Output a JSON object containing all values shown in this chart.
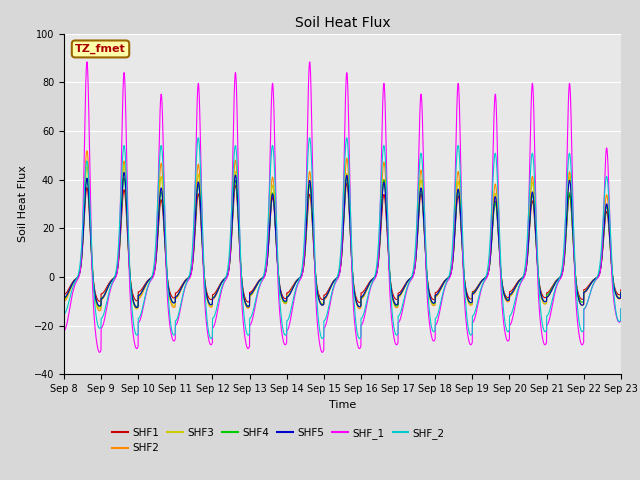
{
  "title": "Soil Heat Flux",
  "xlabel": "Time",
  "ylabel": "Soil Heat Flux",
  "ylim": [
    -40,
    100
  ],
  "x_ticks": [
    "Sep 8",
    "Sep 9",
    "Sep 10",
    "Sep 11",
    "Sep 12",
    "Sep 13",
    "Sep 14",
    "Sep 15",
    "Sep 16",
    "Sep 17",
    "Sep 18",
    "Sep 19",
    "Sep 20",
    "Sep 21",
    "Sep 22",
    "Sep 23"
  ],
  "annotation_text": "TZ_fmet",
  "annotation_bg": "#ffffaa",
  "annotation_border": "#996600",
  "annotation_text_color": "#aa0000",
  "series_colors": {
    "SHF1": "#cc0000",
    "SHF2": "#ff8800",
    "SHF3": "#cccc00",
    "SHF4": "#00cc00",
    "SHF5": "#0000cc",
    "SHF_1": "#ff00ff",
    "SHF_2": "#00cccc"
  },
  "background_color": "#d8d8d8",
  "plot_bg": "#e8e8e8",
  "grid_color": "#ffffff",
  "num_days": 15,
  "points_per_day": 288,
  "title_fontsize": 10,
  "label_fontsize": 8,
  "tick_fontsize": 7
}
